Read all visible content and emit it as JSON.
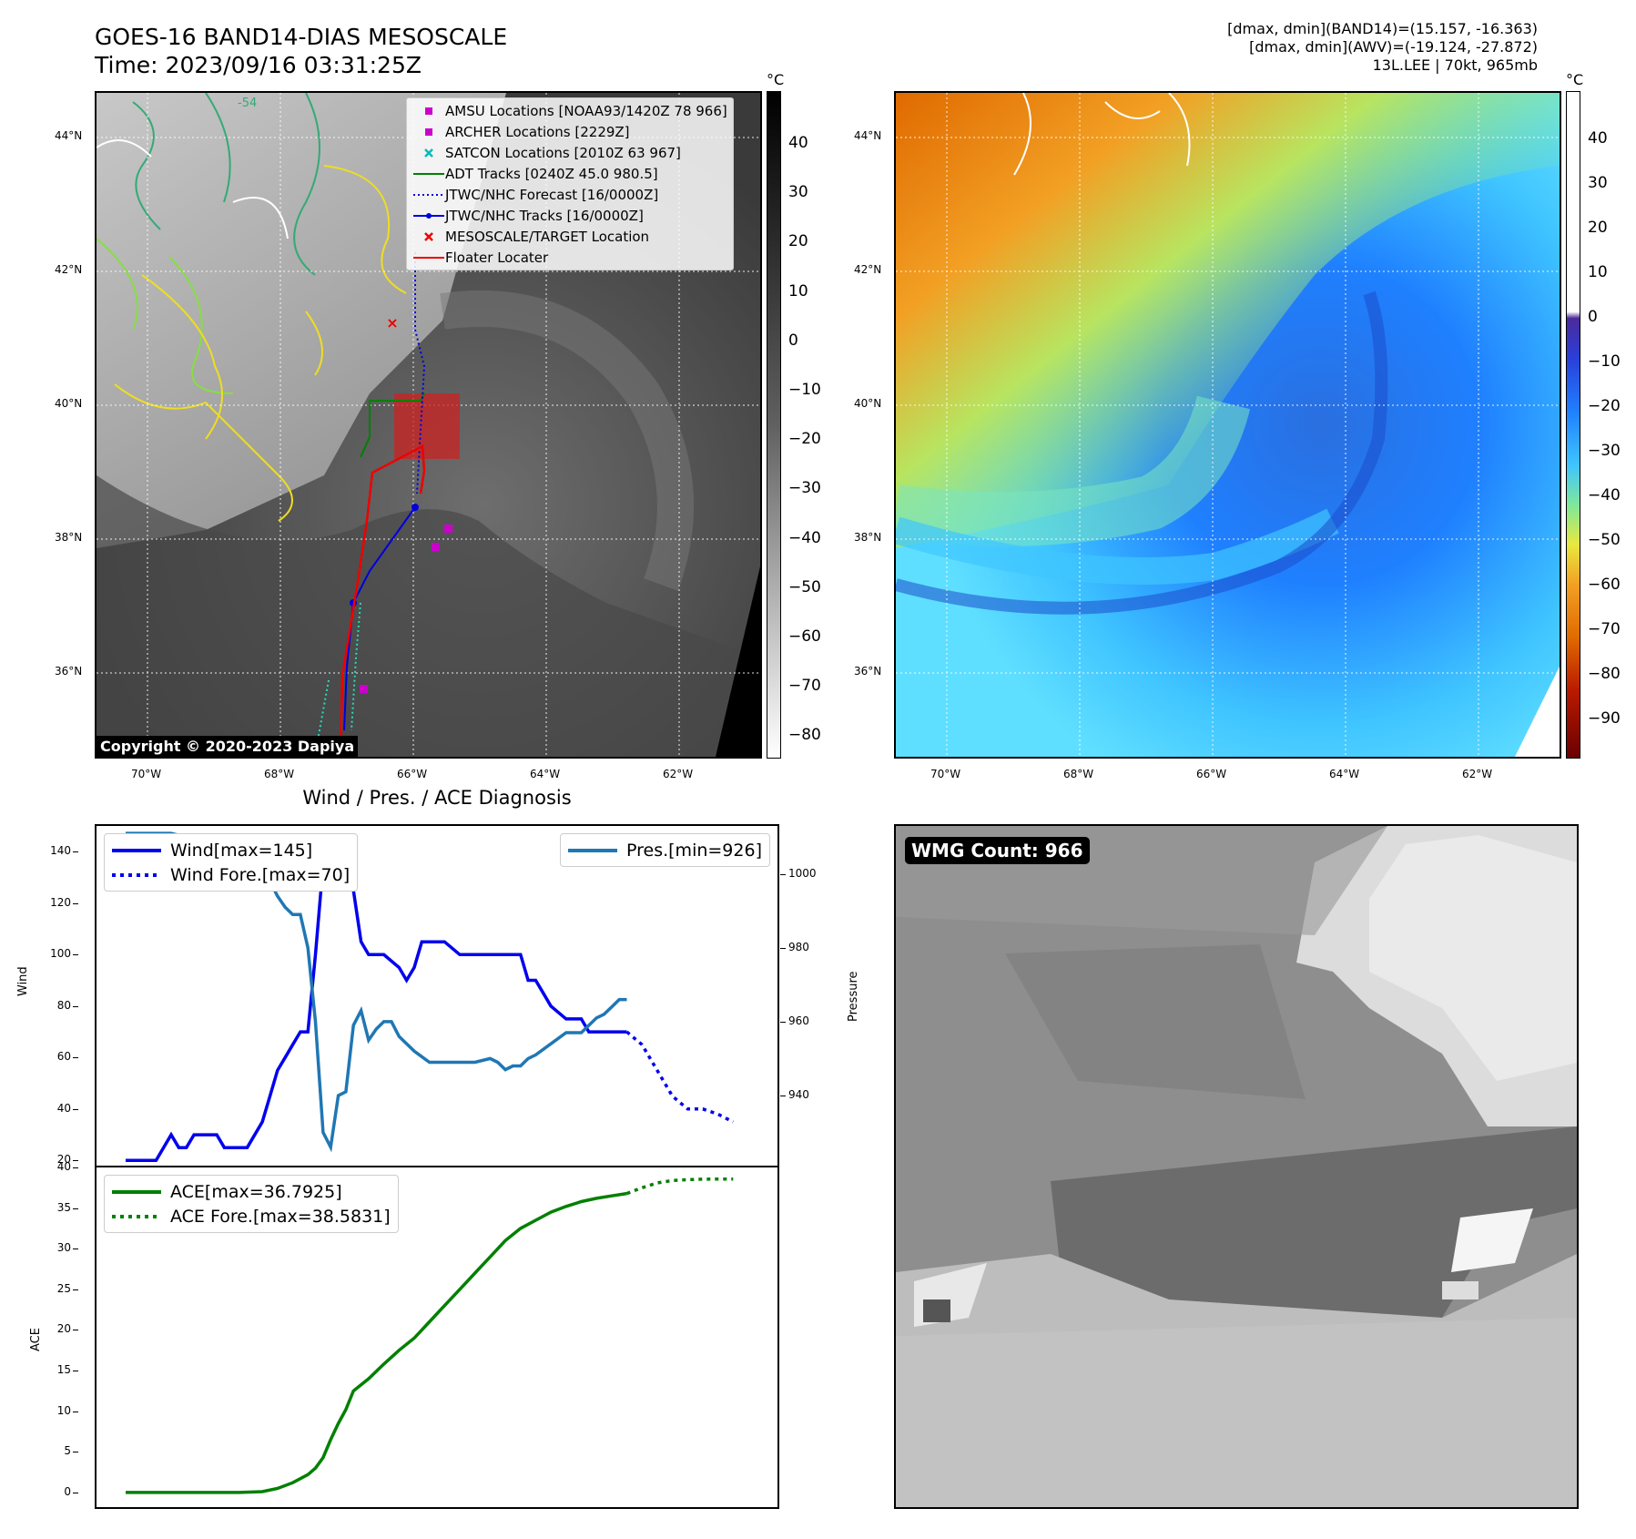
{
  "header": {
    "title_line1": "GOES-16 BAND14-DIAS MESOSCALE",
    "title_line2": "Time: 2023/09/16 03:31:25Z",
    "info_line1": "[dmax, dmin](BAND14)=(15.157, -16.363)",
    "info_line2": "[dmax, dmin](AWV)=(-19.124, -27.872)",
    "info_line3": "13L.LEE | 70kt, 965mb"
  },
  "map": {
    "lat_labels": [
      "44°N",
      "42°N",
      "40°N",
      "38°N",
      "36°N"
    ],
    "lon_labels": [
      "70°W",
      "68°W",
      "66°W",
      "64°W",
      "62°W"
    ],
    "copyright": "Copyright © 2020-2023 Dapiya",
    "legend": [
      {
        "label": "AMSU Locations [NOAA93/1420Z 78 966]",
        "symbol": "square",
        "color": "#cc00cc"
      },
      {
        "label": "ARCHER Locations [2229Z]",
        "symbol": "square",
        "color": "#cc00cc"
      },
      {
        "label": "SATCON Locations [2010Z 63 967]",
        "symbol": "x",
        "color": "#00bbbb"
      },
      {
        "label": "ADT Tracks [0240Z 45.0 980.5]",
        "symbol": "line",
        "color": "#008000"
      },
      {
        "label": "JTWC/NHC Forecast [16/0000Z]",
        "symbol": "dotted",
        "color": "#0000dd"
      },
      {
        "label": "JTWC/NHC Tracks [16/0000Z]",
        "symbol": "linedot",
        "color": "#0000dd"
      },
      {
        "label": "MESOSCALE/TARGET Location",
        "symbol": "x",
        "color": "#ee0000"
      },
      {
        "label": "Floater Locater",
        "symbol": "line",
        "color": "#ee0000"
      }
    ],
    "contour_label": "-54"
  },
  "colorbar_ir": {
    "unit": "°C",
    "ticks": [
      "40",
      "30",
      "20",
      "10",
      "0",
      "−10",
      "−20",
      "−30",
      "−40",
      "−50",
      "−60",
      "−70",
      "−80"
    ]
  },
  "colorbar_wv": {
    "unit": "°C",
    "ticks": [
      "40",
      "30",
      "20",
      "10",
      "0",
      "−10",
      "−20",
      "−30",
      "−40",
      "−50",
      "−60",
      "−70",
      "−80",
      "−90"
    ]
  },
  "wmg": {
    "label": "WMG Count: 966"
  },
  "chart_data": [
    {
      "type": "line",
      "title": "Wind / Pres. / ACE Diagnosis",
      "ylabel": "Wind",
      "ylabel_right": "Pressure",
      "ylim": [
        18,
        150
      ],
      "ylim_right": [
        921,
        1013
      ],
      "xlim": [
        0,
        82
      ],
      "yticks": [
        "20",
        "40",
        "60",
        "80",
        "100",
        "120",
        "140"
      ],
      "yticks_right": [
        "940",
        "960",
        "980",
        "1000"
      ],
      "series": [
        {
          "name": "Wind[max=145]",
          "color": "#0000ee",
          "style": "solid",
          "axis": "left",
          "x": [
            0,
            4,
            6,
            7,
            8,
            9,
            10,
            12,
            13,
            14,
            15,
            16,
            18,
            19,
            20,
            21,
            22,
            23,
            24,
            25,
            26,
            27,
            28,
            30,
            31,
            32,
            33,
            34,
            36,
            37,
            38,
            39,
            40,
            41,
            42,
            44,
            45,
            46,
            47,
            48,
            49,
            50,
            51,
            52,
            53,
            54,
            55,
            56,
            58,
            59,
            60,
            61,
            62,
            63,
            64,
            65,
            66
          ],
          "values": [
            20,
            20,
            30,
            25,
            25,
            30,
            30,
            30,
            25,
            25,
            25,
            25,
            35,
            45,
            55,
            60,
            65,
            70,
            70,
            100,
            135,
            145,
            140,
            125,
            105,
            100,
            100,
            100,
            95,
            90,
            95,
            105,
            105,
            105,
            105,
            100,
            100,
            100,
            100,
            100,
            100,
            100,
            100,
            100,
            90,
            90,
            85,
            80,
            75,
            75,
            75,
            70,
            70,
            70,
            70,
            70,
            70
          ]
        },
        {
          "name": "Wind Fore.[max=70]",
          "color": "#0000ee",
          "style": "dotted",
          "axis": "left",
          "x": [
            66,
            68,
            70,
            72,
            74,
            76,
            78,
            80
          ],
          "values": [
            70,
            65,
            55,
            45,
            40,
            40,
            38,
            35
          ]
        },
        {
          "name": "Pres.[min=926]",
          "color": "#1f77b4",
          "style": "solid",
          "axis": "right",
          "x": [
            0,
            2,
            4,
            6,
            8,
            10,
            12,
            14,
            16,
            17,
            18,
            19,
            20,
            21,
            22,
            23,
            24,
            25,
            26,
            27,
            28,
            29,
            30,
            31,
            32,
            33,
            34,
            35,
            36,
            38,
            40,
            42,
            44,
            46,
            48,
            49,
            50,
            51,
            52,
            53,
            54,
            56,
            58,
            60,
            62,
            63,
            64,
            65,
            66
          ],
          "values": [
            1011,
            1011,
            1011,
            1011,
            1010,
            1010,
            1010,
            1009,
            1007,
            1005,
            1002,
            998,
            994,
            991,
            989,
            989,
            980,
            960,
            930,
            926,
            940,
            941,
            959,
            963,
            955,
            958,
            960,
            960,
            956,
            952,
            949,
            949,
            949,
            949,
            950,
            949,
            947,
            948,
            948,
            950,
            951,
            954,
            957,
            957,
            961,
            962,
            964,
            966,
            966
          ]
        }
      ]
    },
    {
      "type": "line",
      "ylabel": "ACE",
      "ylim": [
        -1.8,
        40
      ],
      "xlim": [
        0,
        82
      ],
      "yticks": [
        "0",
        "5",
        "10",
        "15",
        "20",
        "25",
        "30",
        "35",
        "40"
      ],
      "series": [
        {
          "name": "ACE[max=36.7925]",
          "color": "#008000",
          "style": "solid",
          "x": [
            0,
            5,
            10,
            15,
            18,
            20,
            22,
            24,
            25,
            26,
            27,
            28,
            29,
            30,
            32,
            34,
            36,
            38,
            40,
            42,
            44,
            46,
            48,
            50,
            52,
            54,
            56,
            58,
            60,
            62,
            64,
            66
          ],
          "values": [
            0,
            0,
            0,
            0,
            0.1,
            0.5,
            1.2,
            2.2,
            3.0,
            4.3,
            6.5,
            8.5,
            10.2,
            12.5,
            14.0,
            15.8,
            17.5,
            19.0,
            21.0,
            23.0,
            25.0,
            27.0,
            29.0,
            31.0,
            32.5,
            33.5,
            34.5,
            35.2,
            35.8,
            36.2,
            36.5,
            36.79
          ]
        },
        {
          "name": "ACE Fore.[max=38.5831]",
          "color": "#008000",
          "style": "dotted",
          "x": [
            66,
            68,
            70,
            72,
            74,
            76,
            78,
            80
          ],
          "values": [
            36.79,
            37.5,
            38.1,
            38.4,
            38.5,
            38.55,
            38.58,
            38.58
          ]
        }
      ]
    }
  ]
}
